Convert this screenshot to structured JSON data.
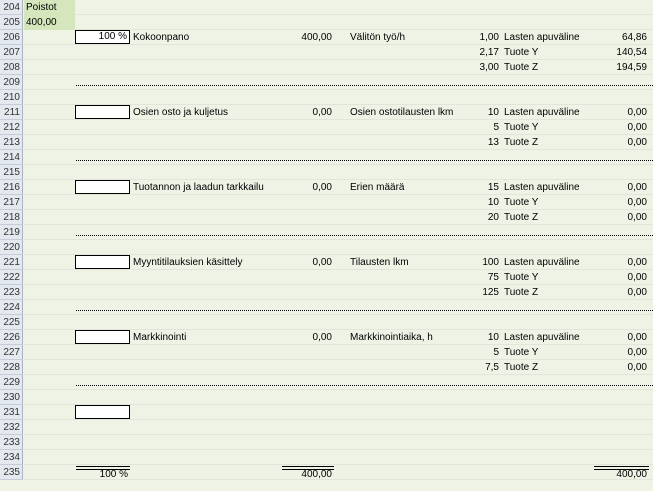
{
  "row_numbers": [
    "204",
    "205",
    "206",
    "207",
    "208",
    "209",
    "210",
    "211",
    "212",
    "213",
    "214",
    "215",
    "216",
    "217",
    "218",
    "219",
    "220",
    "221",
    "222",
    "223",
    "224",
    "225",
    "226",
    "227",
    "228",
    "229",
    "230",
    "231",
    "232",
    "233",
    "234",
    "235"
  ],
  "header": {
    "label": "Poistot",
    "value": "400,00"
  },
  "activities": [
    {
      "pct": "100 %",
      "name": "Kokoonpano",
      "amount": "400,00",
      "driver": "Välitön työ/h",
      "lines": [
        {
          "qty": "1,00",
          "product": "Lasten apuväline",
          "cost": "64,86"
        },
        {
          "qty": "2,17",
          "product": "Tuote Y",
          "cost": "140,54"
        },
        {
          "qty": "3,00",
          "product": "Tuote Z",
          "cost": "194,59"
        }
      ]
    },
    {
      "pct": "",
      "name": "Osien osto ja kuljetus",
      "amount": "0,00",
      "driver": "Osien ostotilausten lkm",
      "lines": [
        {
          "qty": "10",
          "product": "Lasten apuväline",
          "cost": "0,00"
        },
        {
          "qty": "5",
          "product": "Tuote Y",
          "cost": "0,00"
        },
        {
          "qty": "13",
          "product": "Tuote Z",
          "cost": "0,00"
        }
      ]
    },
    {
      "pct": "",
      "name": "Tuotannon ja laadun tarkkailu",
      "amount": "0,00",
      "driver": "Erien määrä",
      "lines": [
        {
          "qty": "15",
          "product": "Lasten apuväline",
          "cost": "0,00"
        },
        {
          "qty": "10",
          "product": "Tuote Y",
          "cost": "0,00"
        },
        {
          "qty": "20",
          "product": "Tuote Z",
          "cost": "0,00"
        }
      ]
    },
    {
      "pct": "",
      "name": "Myyntitilauksien käsittely",
      "amount": "0,00",
      "driver": "Tilausten lkm",
      "lines": [
        {
          "qty": "100",
          "product": "Lasten apuväline",
          "cost": "0,00"
        },
        {
          "qty": "75",
          "product": "Tuote Y",
          "cost": "0,00"
        },
        {
          "qty": "125",
          "product": "Tuote Z",
          "cost": "0,00"
        }
      ]
    },
    {
      "pct": "",
      "name": "Markkinointi",
      "amount": "0,00",
      "driver": "Markkinointiaika, h",
      "lines": [
        {
          "qty": "10",
          "product": "Lasten apuväline",
          "cost": "0,00"
        },
        {
          "qty": "5",
          "product": "Tuote Y",
          "cost": "0,00"
        },
        {
          "qty": "7,5",
          "product": "Tuote Z",
          "cost": "0,00"
        }
      ]
    }
  ],
  "extra_pct_box": "",
  "totals": {
    "pct": "100 %",
    "amount": "400,00",
    "cost": "400,00"
  }
}
